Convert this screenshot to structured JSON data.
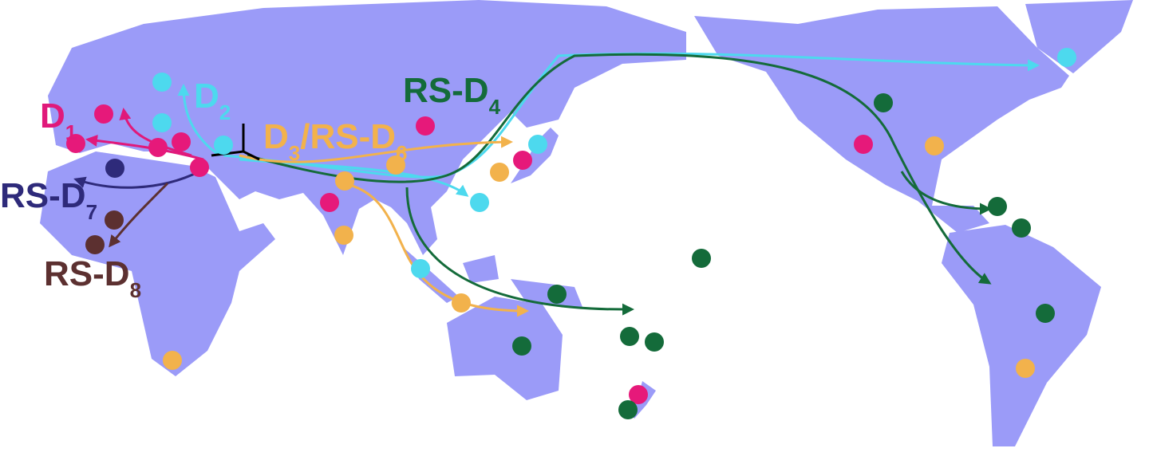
{
  "labels": [
    {
      "parts": [
        "D",
        "1"
      ],
      "color": "#e0197a"
    },
    {
      "parts": [
        "D",
        "2"
      ],
      "color": "#4dd9ee"
    },
    {
      "parts": [
        "RS-D",
        "4"
      ],
      "color": "#146b3a"
    },
    {
      "parts": [
        "D",
        "3",
        "/RS-D",
        "6"
      ],
      "color": "#f2b24c"
    },
    {
      "parts": [
        "RS-D",
        "7"
      ],
      "color": "#2e2a7a"
    },
    {
      "parts": [
        "RS-D",
        "8"
      ],
      "color": "#5c3030"
    }
  ]
}
